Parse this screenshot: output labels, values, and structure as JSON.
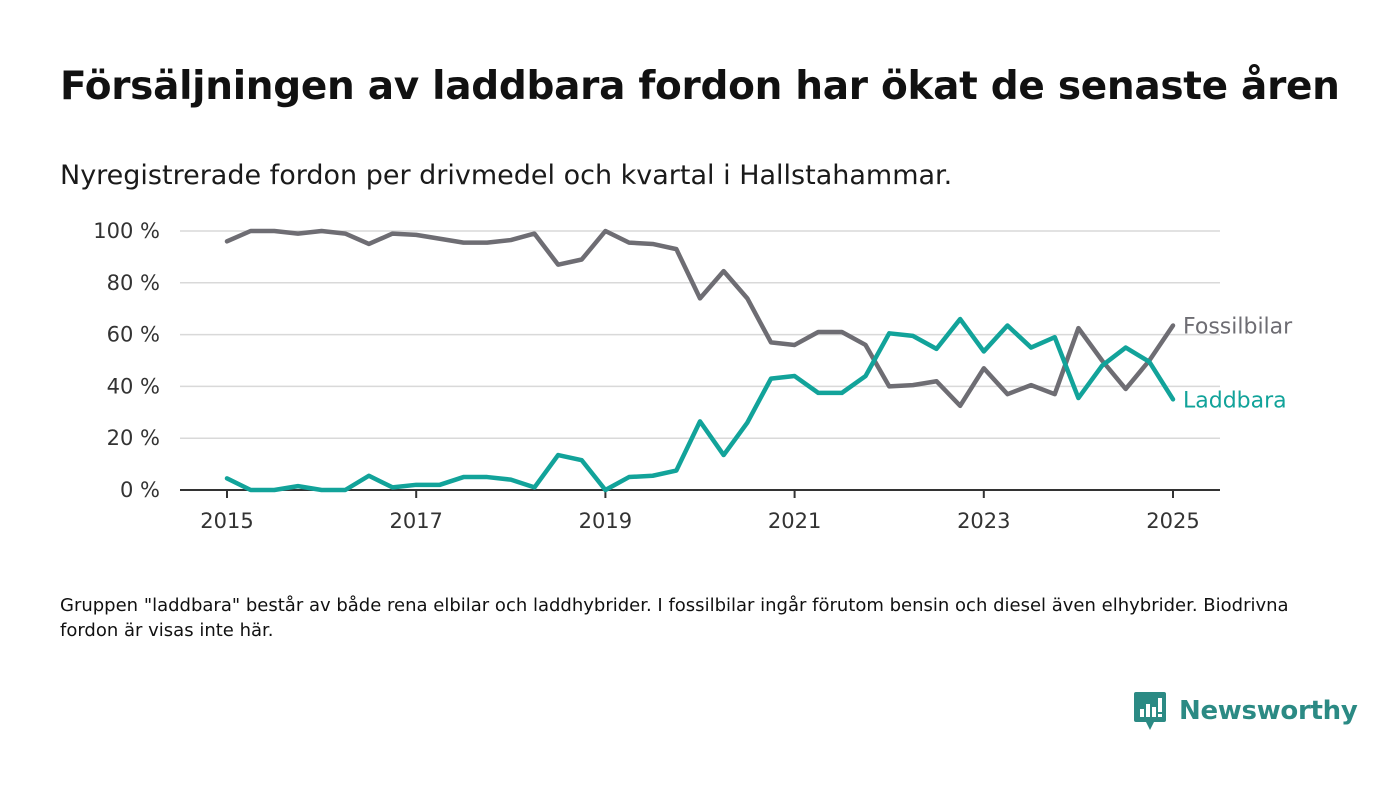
{
  "title": "Försäljningen av laddbara fordon har ökat de senaste åren",
  "subtitle": "Nyregistrerade fordon per drivmedel och kvartal i Hallstahammar.",
  "footnote": "Gruppen \"laddbara\" består av både rena elbilar och laddhybrider. I fossilbilar ingår förutom bensin och diesel även elhybrider. Biodrivna fordon är visas inte här.",
  "logo": {
    "name": "Newsworthy",
    "icon": "newsworthy-chart-bubble-icon"
  },
  "colors": {
    "fossil": "#6e6d73",
    "laddbara": "#12a39a",
    "grid": "#d9d9d9",
    "axis": "#333333",
    "brand": "#2b8a84"
  },
  "chart_data": {
    "type": "line",
    "title": "",
    "xlabel": "",
    "ylabel": "",
    "ylim": [
      0,
      100
    ],
    "xlim": [
      2015,
      2025
    ],
    "yticks": [
      0,
      20,
      40,
      60,
      80,
      100
    ],
    "ytick_labels": [
      "0 %",
      "20 %",
      "40 %",
      "60 %",
      "80 %",
      "100 %"
    ],
    "xticks": [
      2015,
      2017,
      2019,
      2021,
      2023,
      2025
    ],
    "xtick_labels": [
      "2015",
      "2017",
      "2019",
      "2021",
      "2023",
      "2025"
    ],
    "grid": true,
    "legend": "inline-right",
    "x": [
      2015.0,
      2015.25,
      2015.5,
      2015.75,
      2016.0,
      2016.25,
      2016.5,
      2016.75,
      2017.0,
      2017.25,
      2017.5,
      2017.75,
      2018.0,
      2018.25,
      2018.5,
      2018.75,
      2019.0,
      2019.25,
      2019.5,
      2019.75,
      2020.0,
      2020.25,
      2020.5,
      2020.75,
      2021.0,
      2021.25,
      2021.5,
      2021.75,
      2022.0,
      2022.25,
      2022.5,
      2022.75,
      2023.0,
      2023.25,
      2023.5,
      2023.75,
      2024.0,
      2024.25,
      2024.5,
      2024.75,
      2025.0
    ],
    "series": [
      {
        "name": "Fossilbilar",
        "color": "#6e6d73",
        "values": [
          96,
          100,
          100,
          99,
          100,
          99,
          95,
          99,
          98.5,
          97,
          95.5,
          95.5,
          96.5,
          99,
          87,
          89,
          100,
          95.5,
          95,
          93,
          74,
          84.5,
          74,
          57,
          56,
          61,
          61,
          56,
          40,
          40.5,
          42,
          32.5,
          47,
          37,
          40.5,
          37,
          62.5,
          50,
          39,
          50,
          63.5
        ]
      },
      {
        "name": "Laddbara",
        "color": "#12a39a",
        "values": [
          4.5,
          0,
          0,
          1.5,
          0,
          0,
          5.5,
          1,
          2,
          2,
          5,
          5,
          4,
          1,
          13.5,
          11.5,
          0,
          5,
          5.5,
          7.5,
          26.5,
          13.5,
          26,
          43,
          44,
          37.5,
          37.5,
          44,
          60.5,
          59.5,
          54.5,
          66,
          53.5,
          63.5,
          55,
          59,
          35.5,
          48,
          55,
          49.5,
          35
        ]
      }
    ]
  }
}
